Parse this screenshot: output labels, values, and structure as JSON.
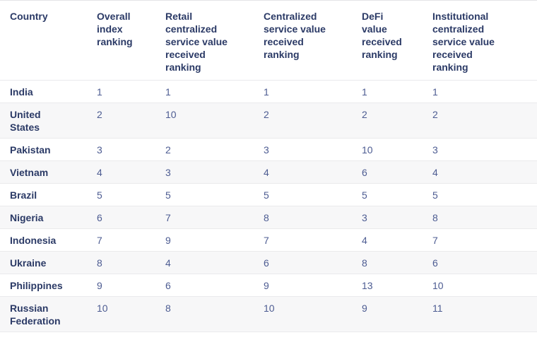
{
  "table": {
    "columns": [
      {
        "label": "Country"
      },
      {
        "label": "Overall\nindex\nranking"
      },
      {
        "label": "Retail\ncentralized\nservice value\nreceived\nranking"
      },
      {
        "label": "Centralized\nservice value\nreceived\nranking"
      },
      {
        "label": "DeFi\nvalue\nreceived\nranking"
      },
      {
        "label": "Institutional\ncentralized\nservice value\nreceived\nranking"
      }
    ],
    "rows": [
      {
        "country": "India",
        "values": [
          "1",
          "1",
          "1",
          "1",
          "1"
        ]
      },
      {
        "country": "United\nStates",
        "values": [
          "2",
          "10",
          "2",
          "2",
          "2"
        ]
      },
      {
        "country": "Pakistan",
        "values": [
          "3",
          "2",
          "3",
          "10",
          "3"
        ]
      },
      {
        "country": "Vietnam",
        "values": [
          "4",
          "3",
          "4",
          "6",
          "4"
        ]
      },
      {
        "country": "Brazil",
        "values": [
          "5",
          "5",
          "5",
          "5",
          "5"
        ]
      },
      {
        "country": "Nigeria",
        "values": [
          "6",
          "7",
          "8",
          "3",
          "8"
        ]
      },
      {
        "country": "Indonesia",
        "values": [
          "7",
          "9",
          "7",
          "4",
          "7"
        ]
      },
      {
        "country": "Ukraine",
        "values": [
          "8",
          "4",
          "6",
          "8",
          "6"
        ]
      },
      {
        "country": "Philippines",
        "values": [
          "9",
          "6",
          "9",
          "13",
          "10"
        ]
      },
      {
        "country": "Russian\nFederation",
        "values": [
          "10",
          "8",
          "10",
          "9",
          "11"
        ]
      }
    ]
  },
  "colors": {
    "header_text": "#2b3a66",
    "country_text": "#2b3a66",
    "value_text": "#4d5c92",
    "row_alt_background": "#f7f7f8",
    "divider": "#eaeaec"
  }
}
